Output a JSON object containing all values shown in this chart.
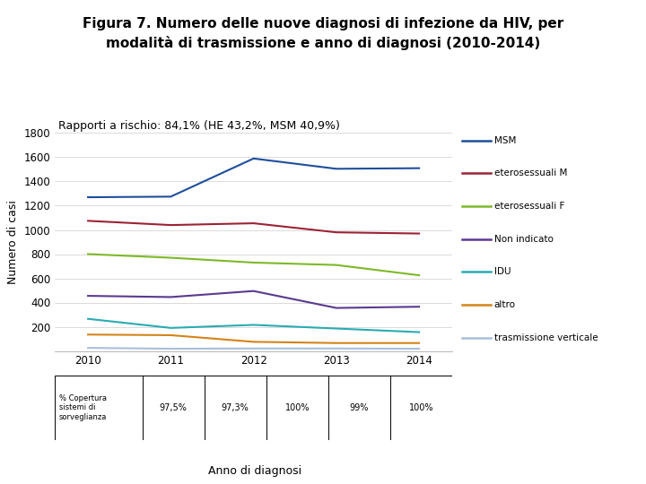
{
  "title_line1": "Figura 7. Numero delle nuove diagnosi di infezione da HIV, per",
  "title_line2": "modalità di trasmissione e anno di diagnosi (2010-2014)",
  "subtitle": "Rapporti a rischio: 84,1% (HE 43,2%, MSM 40,9%)",
  "xlabel": "Anno di diagnosi",
  "ylabel": "Numero di casi",
  "years": [
    2010,
    2011,
    2012,
    2013,
    2014
  ],
  "series": {
    "MSM": {
      "values": [
        1270,
        1275,
        1590,
        1505,
        1510
      ],
      "color": "#1F4E9A"
    },
    "eterosessuali M": {
      "values": [
        1075,
        1040,
        1055,
        980,
        970
      ],
      "color": "#9B2335"
    },
    "eterosessuali F": {
      "values": [
        800,
        770,
        730,
        710,
        625
      ],
      "color": "#7DB928"
    },
    "Non indicato": {
      "values": [
        455,
        445,
        495,
        355,
        365
      ],
      "color": "#5B3A8E"
    },
    "IDU": {
      "values": [
        265,
        190,
        215,
        185,
        155
      ],
      "color": "#2AABB3"
    },
    "altro": {
      "values": [
        135,
        130,
        75,
        65,
        65
      ],
      "color": "#D4841A"
    },
    "trasmissione verticale": {
      "values": [
        25,
        18,
        20,
        20,
        18
      ],
      "color": "#A8BFDC"
    }
  },
  "ylim": [
    0,
    1800
  ],
  "yticks": [
    0,
    200,
    400,
    600,
    800,
    1000,
    1200,
    1400,
    1600,
    1800
  ],
  "background_color": "#FFFFFF",
  "table_row_label": "% Copertura\nsistemi di\nsorveglianza",
  "table_values": [
    "97,5%",
    "97,3%",
    "100%",
    "99%",
    "100%"
  ],
  "title_fontsize": 11,
  "subtitle_fontsize": 9,
  "axis_label_fontsize": 9,
  "legend_fontsize": 7.5
}
